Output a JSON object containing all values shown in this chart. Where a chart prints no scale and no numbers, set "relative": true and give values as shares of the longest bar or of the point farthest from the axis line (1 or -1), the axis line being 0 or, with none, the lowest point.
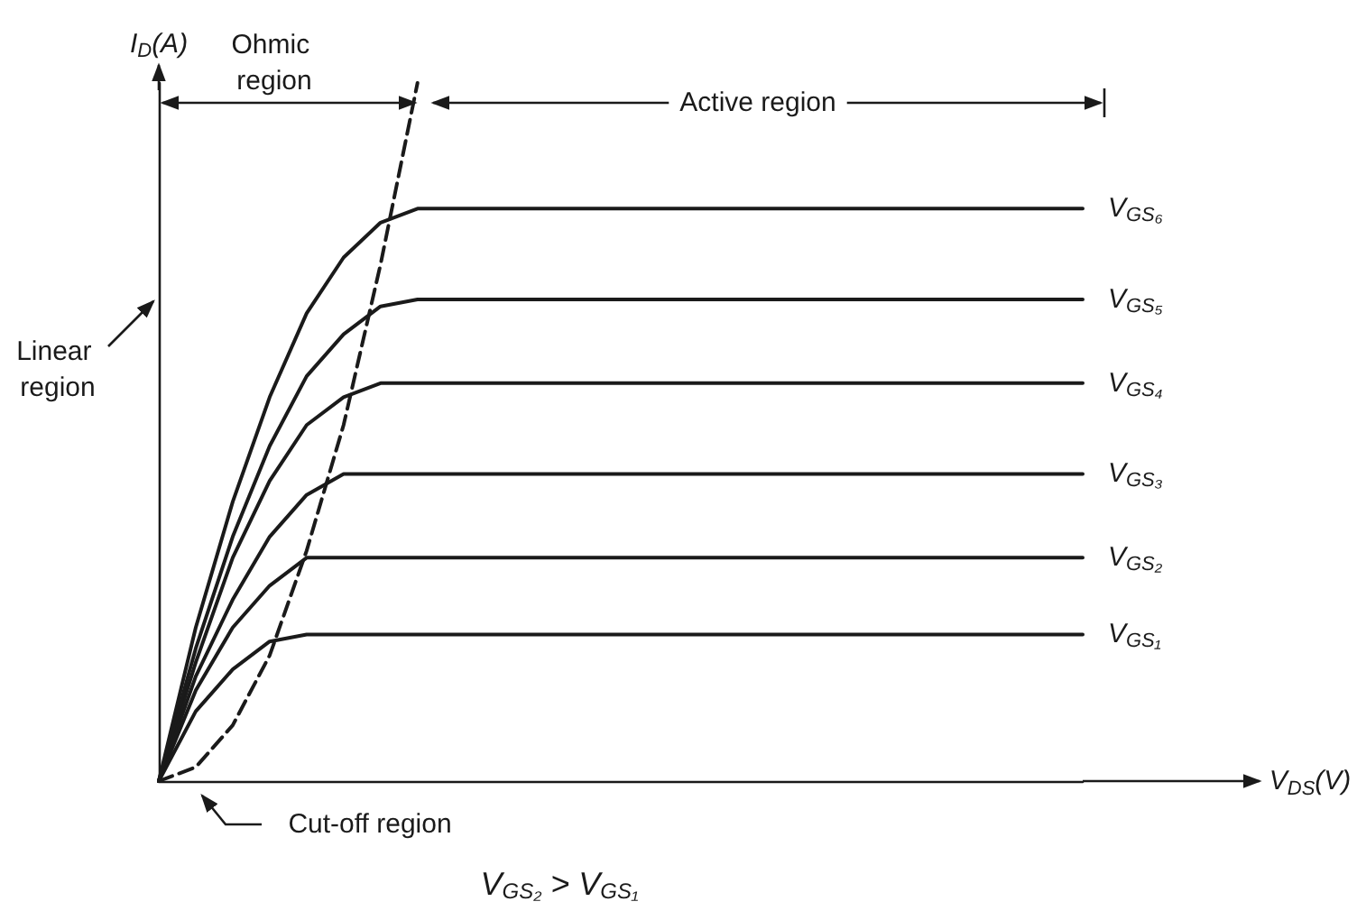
{
  "chart_data": {
    "type": "line",
    "relative": true,
    "ylabel": "I$_{D}$(A)",
    "legend": false,
    "grid": false,
    "marker": "none",
    "categories": [
      null,
      null,
      null,
      null,
      null,
      null,
      null,
      null,
      null,
      null,
      null,
      null,
      null,
      null,
      null,
      null,
      null,
      null,
      null,
      null,
      null,
      null,
      null,
      null,
      null,
      null
    ],
    "series": [
      {
        "name": "V$_{GS₁}$",
        "color": "#1a1a1a",
        "values": [
          0,
          0.1,
          0.16,
          0.2,
          0.21,
          0.21,
          0.21,
          0.21,
          0.21,
          0.21,
          0.21,
          0.21,
          0.21,
          0.21,
          0.21,
          0.21,
          0.21,
          0.21,
          0.21,
          0.21,
          0.21,
          0.21,
          0.21,
          0.21,
          0.21,
          0.21
        ]
      },
      {
        "name": "V$_{GS₂}$",
        "color": "#1a1a1a",
        "values": [
          0,
          0.13,
          0.22,
          0.28,
          0.32,
          0.32,
          0.32,
          0.32,
          0.32,
          0.32,
          0.32,
          0.32,
          0.32,
          0.32,
          0.32,
          0.32,
          0.32,
          0.32,
          0.32,
          0.32,
          0.32,
          0.32,
          0.32,
          0.32,
          0.32,
          0.32
        ]
      },
      {
        "name": "V$_{GS₃}$",
        "color": "#1a1a1a",
        "values": [
          0,
          0.15,
          0.26,
          0.35,
          0.41,
          0.44,
          0.44,
          0.44,
          0.44,
          0.44,
          0.44,
          0.44,
          0.44,
          0.44,
          0.44,
          0.44,
          0.44,
          0.44,
          0.44,
          0.44,
          0.44,
          0.44,
          0.44,
          0.44,
          0.44,
          0.44
        ]
      },
      {
        "name": "V$_{GS₄}$",
        "color": "#1a1a1a",
        "values": [
          0,
          0.17,
          0.32,
          0.43,
          0.51,
          0.55,
          0.57,
          0.57,
          0.57,
          0.57,
          0.57,
          0.57,
          0.57,
          0.57,
          0.57,
          0.57,
          0.57,
          0.57,
          0.57,
          0.57,
          0.57,
          0.57,
          0.57,
          0.57,
          0.57,
          0.57
        ]
      },
      {
        "name": "V$_{GS₅}$",
        "color": "#1a1a1a",
        "values": [
          0,
          0.19,
          0.35,
          0.48,
          0.58,
          0.64,
          0.68,
          0.69,
          0.69,
          0.69,
          0.69,
          0.69,
          0.69,
          0.69,
          0.69,
          0.69,
          0.69,
          0.69,
          0.69,
          0.69,
          0.69,
          0.69,
          0.69,
          0.69,
          0.69,
          0.69
        ]
      },
      {
        "name": "V$_{GS₆}$",
        "color": "#1a1a1a",
        "values": [
          0,
          0.22,
          0.4,
          0.55,
          0.67,
          0.75,
          0.8,
          0.82,
          0.82,
          0.82,
          0.82,
          0.82,
          0.82,
          0.82,
          0.82,
          0.82,
          0.82,
          0.82,
          0.82,
          0.82,
          0.82,
          0.82,
          0.82,
          0.82,
          0.82,
          0.82
        ]
      },
      {
        "color": "#1a1a1a",
        "line_style": "dashed",
        "values": [
          0,
          0.02,
          0.08,
          0.18,
          0.33,
          0.51,
          0.74,
          1,
          null,
          null,
          null,
          null,
          null,
          null,
          null,
          null,
          null,
          null,
          null,
          null,
          null,
          null,
          null,
          null,
          null,
          null
        ]
      }
    ],
    "annotations": [
      "Ohmic region",
      "Active region",
      "Linear region",
      "Cut-off region",
      "V$_{GS₂}$ > V$_{GS₁}$",
      "V$_{DS}$(V)"
    ]
  }
}
